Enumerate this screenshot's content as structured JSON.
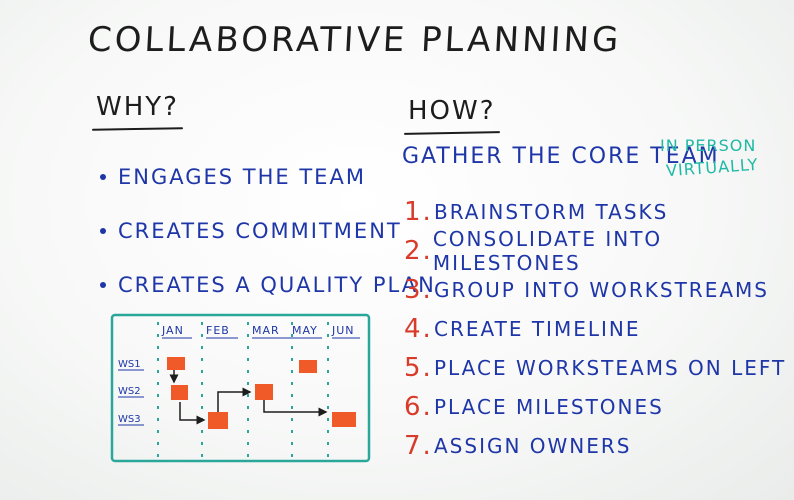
{
  "title": "COLLABORATIVE PLANNING",
  "why": {
    "heading": "WHY?",
    "items": [
      "ENGAGES THE TEAM",
      "CREATES COMMITMENT",
      "CREATES A QUALITY PLAN"
    ]
  },
  "how": {
    "heading": "HOW?",
    "gather": "GATHER THE CORE TEAM",
    "modes": [
      "IN PERSON",
      "VIRTUALLY"
    ],
    "steps": [
      {
        "num": "1.",
        "text": "BRAINSTORM TASKS"
      },
      {
        "num": "2.",
        "text": "CONSOLIDATE INTO MILESTONES"
      },
      {
        "num": "3.",
        "text": "GROUP INTO WORKSTREAMS"
      },
      {
        "num": "4.",
        "text": "CREATE TIMELINE"
      },
      {
        "num": "5.",
        "text": "PLACE WORKSTEAMS ON LEFT"
      },
      {
        "num": "6.",
        "text": "PLACE MILESTONES"
      },
      {
        "num": "7.",
        "text": "ASSIGN OWNERS"
      }
    ]
  },
  "timeline": {
    "months": [
      "JAN",
      "FEB",
      "MAR",
      "MAY",
      "JUN"
    ],
    "workstreams": [
      "WS1",
      "WS2",
      "WS3"
    ],
    "colors": {
      "frame": "#2aa79a",
      "milestone": "#f05a28",
      "ink": "#1d1d1d",
      "label": "#1e36a8"
    }
  }
}
